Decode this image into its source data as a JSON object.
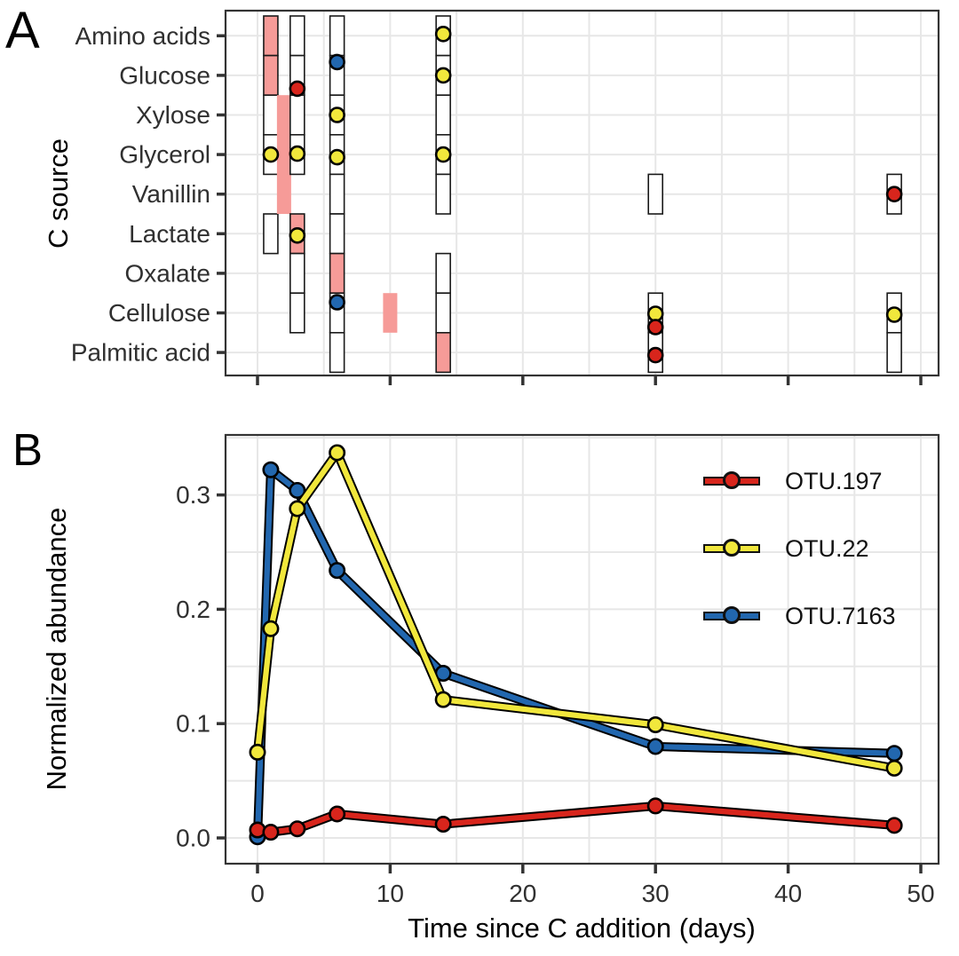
{
  "panels": {
    "a": {
      "label": "A",
      "y_axis_title": "C source"
    },
    "b": {
      "label": "B",
      "y_axis_title": "Normalized abundance",
      "x_axis_title": "Time since C addition (days)",
      "x_tick_labels": [
        "0",
        "10",
        "20",
        "30",
        "40",
        "50"
      ],
      "y_tick_labels": [
        "0.0",
        "0.1",
        "0.2",
        "0.3"
      ]
    }
  },
  "colors": {
    "otu_197_red": "#D8251C",
    "otu_22_yellow": "#F1E73C",
    "otu_7163_blue": "#2267AF",
    "incorporation_pink": "#F69B98",
    "grid_gray": "#E7E7E7",
    "axis_text": "#303030",
    "border": "#333333"
  },
  "chart_data": [
    {
      "type": "scatter",
      "title": "C source incorporation map",
      "ylabel": "C source",
      "categories": [
        "Amino acids",
        "Glucose",
        "Xylose",
        "Glycerol",
        "Vanillin",
        "Lactate",
        "Oxalate",
        "Cellulose",
        "Palmitic acid"
      ],
      "x_axis": {
        "range": [
          0,
          50
        ],
        "ticks": [
          0,
          10,
          20,
          30,
          40,
          50
        ],
        "minor_grid_step": 5,
        "tick_labels_shown": false
      },
      "columns": [
        {
          "day": 1,
          "outline": true,
          "cells": [
            {
              "from": "Amino acids",
              "fill": "pink"
            },
            {
              "from": "Glucose",
              "fill": "pink"
            },
            {
              "from": "Xylose",
              "fill": "white"
            },
            {
              "from": "Glycerol",
              "fill": "white"
            },
            {
              "from": "Lactate",
              "fill": "white"
            }
          ]
        },
        {
          "day": 2,
          "outline": false,
          "cells": [
            {
              "from": "Xylose",
              "to": "Vanillin",
              "fill": "pink"
            }
          ]
        },
        {
          "day": 3,
          "outline": true,
          "cells": [
            {
              "from": "Amino acids",
              "fill": "white"
            },
            {
              "from": "Glucose",
              "fill": "white"
            },
            {
              "from": "Xylose",
              "fill": "white"
            },
            {
              "from": "Glycerol",
              "fill": "white"
            },
            {
              "from": "Lactate",
              "fill": "pink"
            },
            {
              "from": "Oxalate",
              "fill": "white"
            },
            {
              "from": "Cellulose",
              "fill": "white"
            }
          ]
        },
        {
          "day": 6,
          "outline": true,
          "cells": [
            {
              "from": "Amino acids",
              "fill": "white"
            },
            {
              "from": "Glucose",
              "fill": "white"
            },
            {
              "from": "Xylose",
              "fill": "white"
            },
            {
              "from": "Glycerol",
              "fill": "white"
            },
            {
              "from": "Vanillin",
              "fill": "white"
            },
            {
              "from": "Lactate",
              "fill": "white"
            },
            {
              "from": "Oxalate",
              "fill": "pink"
            },
            {
              "from": "Cellulose",
              "fill": "white"
            },
            {
              "from": "Palmitic acid",
              "fill": "white"
            }
          ]
        },
        {
          "day": 10,
          "outline": false,
          "cells": [
            {
              "from": "Cellulose",
              "fill": "pink"
            }
          ]
        },
        {
          "day": 14,
          "outline": true,
          "cells": [
            {
              "from": "Amino acids",
              "fill": "white"
            },
            {
              "from": "Glucose",
              "fill": "white"
            },
            {
              "from": "Xylose",
              "fill": "white"
            },
            {
              "from": "Glycerol",
              "fill": "white"
            },
            {
              "from": "Vanillin",
              "fill": "white"
            },
            {
              "from": "Oxalate",
              "fill": "white"
            },
            {
              "from": "Cellulose",
              "fill": "white"
            },
            {
              "from": "Palmitic acid",
              "fill": "pink"
            }
          ]
        },
        {
          "day": 30,
          "outline": true,
          "cells": [
            {
              "from": "Vanillin",
              "fill": "white"
            },
            {
              "from": "Cellulose",
              "fill": "white"
            },
            {
              "from": "Palmitic acid",
              "fill": "white"
            }
          ]
        },
        {
          "day": 48,
          "outline": true,
          "cells": [
            {
              "from": "Vanillin",
              "fill": "white"
            },
            {
              "from": "Cellulose",
              "fill": "white"
            },
            {
              "from": "Palmitic acid",
              "fill": "white"
            }
          ]
        }
      ],
      "dots": [
        {
          "day": 1,
          "source": "Glycerol",
          "otu": "OTU.22",
          "dy": 0
        },
        {
          "day": 3,
          "source": "Glucose",
          "otu": "OTU.197",
          "dy": 15
        },
        {
          "day": 3,
          "source": "Glycerol",
          "otu": "OTU.22",
          "dy": -1
        },
        {
          "day": 3,
          "source": "Lactate",
          "otu": "OTU.22",
          "dy": 2
        },
        {
          "day": 6,
          "source": "Glucose",
          "otu": "OTU.7163",
          "dy": -15
        },
        {
          "day": 6,
          "source": "Xylose",
          "otu": "OTU.22",
          "dy": 0
        },
        {
          "day": 6,
          "source": "Glycerol",
          "otu": "OTU.22",
          "dy": 3
        },
        {
          "day": 6,
          "source": "Cellulose",
          "otu": "OTU.7163",
          "dy": -12
        },
        {
          "day": 14,
          "source": "Amino acids",
          "otu": "OTU.22",
          "dy": -2
        },
        {
          "day": 14,
          "source": "Glucose",
          "otu": "OTU.22",
          "dy": 0
        },
        {
          "day": 14,
          "source": "Glycerol",
          "otu": "OTU.22",
          "dy": 0
        },
        {
          "day": 30,
          "source": "Cellulose",
          "otu": "OTU.22",
          "dy": 1
        },
        {
          "day": 30,
          "source": "Cellulose",
          "otu": "OTU.197",
          "dy": 16
        },
        {
          "day": 30,
          "source": "Palmitic acid",
          "otu": "OTU.197",
          "dy": 3
        },
        {
          "day": 48,
          "source": "Vanillin",
          "otu": "OTU.197",
          "dy": 0
        },
        {
          "day": 48,
          "source": "Cellulose",
          "otu": "OTU.22",
          "dy": 2
        }
      ]
    },
    {
      "type": "line",
      "x": [
        0,
        1,
        3,
        6,
        14,
        30,
        48
      ],
      "series": [
        {
          "name": "OTU.197",
          "color": "#D8251C",
          "values": [
            0.007,
            0.005,
            0.008,
            0.021,
            0.012,
            0.028,
            0.011
          ]
        },
        {
          "name": "OTU.22",
          "color": "#F1E73C",
          "values": [
            0.075,
            0.183,
            0.288,
            0.337,
            0.121,
            0.099,
            0.061
          ]
        },
        {
          "name": "OTU.7163",
          "color": "#2267AF",
          "values": [
            0.001,
            0.322,
            0.304,
            0.234,
            0.144,
            0.08,
            0.074
          ]
        }
      ],
      "xlabel": "Time since C addition (days)",
      "ylabel": "Normalized abundance",
      "xlim": [
        -2.4,
        51.3
      ],
      "ylim": [
        -0.024,
        0.352
      ],
      "x_ticks": [
        0,
        10,
        20,
        30,
        40,
        50
      ],
      "y_ticks": [
        0,
        0.1,
        0.2,
        0.3
      ],
      "grid": "light gray, vertical every 5 days, horizontal every 0.05",
      "legend_position": "inside top-right"
    }
  ]
}
